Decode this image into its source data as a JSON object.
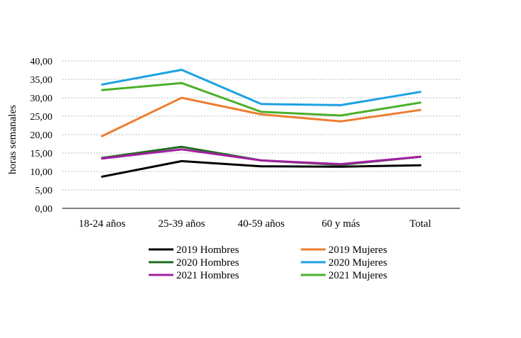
{
  "chart_data": {
    "type": "line",
    "categories": [
      "18-24 años",
      "25-39 años",
      "40-59 años",
      "60 y  más",
      "Total"
    ],
    "ylabel": "horas semanales",
    "ylim": [
      0,
      40
    ],
    "yticks": [
      "0,00",
      "5,00",
      "10,00",
      "15,00",
      "20,00",
      "25,00",
      "30,00",
      "35,00",
      "40,00"
    ],
    "grid": "horizontal dotted",
    "legend_placement": "bottom",
    "series": [
      {
        "name": "2019 Hombres",
        "color": "#000000",
        "values": [
          8.6,
          12.8,
          11.4,
          11.3,
          11.7
        ]
      },
      {
        "name": "2019 Mujeres",
        "color": "#ED7D31",
        "values": [
          19.6,
          30.0,
          25.5,
          23.6,
          26.7
        ]
      },
      {
        "name": "2020 Hombres",
        "color": "#1E6B1E",
        "values": [
          13.7,
          16.7,
          13.0,
          11.8,
          14.0
        ]
      },
      {
        "name": "2020 Mujeres",
        "color": "#1BA1E2",
        "values": [
          33.6,
          37.6,
          28.3,
          28.0,
          31.6
        ]
      },
      {
        "name": "2021 Hombres",
        "color": "#A020A0",
        "values": [
          13.5,
          16.0,
          13.0,
          12.0,
          14.0
        ]
      },
      {
        "name": "2021 Mujeres",
        "color": "#4CAF2A",
        "values": [
          32.1,
          34.0,
          26.2,
          25.2,
          28.7
        ]
      }
    ]
  }
}
